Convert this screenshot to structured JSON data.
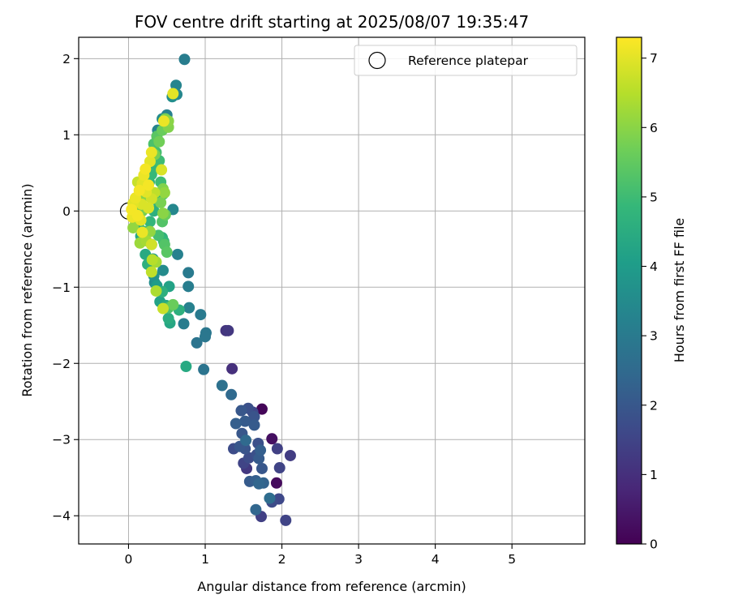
{
  "chart_data": {
    "type": "scatter",
    "title": "FOV centre drift starting at 2025/08/07 19:35:47",
    "xlabel": "Angular distance from reference (arcmin)",
    "ylabel": "Rotation from reference (arcmin)",
    "xlim": [
      -0.65,
      5.95
    ],
    "ylim": [
      -4.37,
      2.28
    ],
    "xticks": [
      0,
      1,
      2,
      3,
      4,
      5
    ],
    "xtick_labels": [
      "0",
      "1",
      "2",
      "3",
      "4",
      "5"
    ],
    "yticks": [
      -4,
      -3,
      -2,
      -1,
      0,
      1,
      2
    ],
    "ytick_labels": [
      "−4",
      "−3",
      "−2",
      "−1",
      "0",
      "1",
      "2"
    ],
    "grid": true,
    "legend": {
      "position": "upper right",
      "entries": [
        "Reference platepar"
      ]
    },
    "reference_point": {
      "label": "Reference platepar",
      "x": 0,
      "y": 0
    },
    "colorbar": {
      "label": "Hours from first FF file",
      "colormap": "viridis",
      "range": [
        0,
        7.3
      ],
      "ticks": [
        0,
        1,
        2,
        3,
        4,
        5,
        6,
        7
      ],
      "tick_labels": [
        "0",
        "1",
        "2",
        "3",
        "4",
        "5",
        "6",
        "7"
      ]
    },
    "colormap_stops": [
      "#440154",
      "#482878",
      "#3e4989",
      "#31688e",
      "#26828e",
      "#1f9e89",
      "#35b779",
      "#6ece58",
      "#b5de2b",
      "#fde725"
    ],
    "points": [
      {
        "x": 1.74,
        "y": -2.6,
        "h": 0.1
      },
      {
        "x": 1.87,
        "y": -2.99,
        "h": 0.3
      },
      {
        "x": 1.93,
        "y": -3.57,
        "h": 0.2
      },
      {
        "x": 1.35,
        "y": -2.07,
        "h": 1.0
      },
      {
        "x": 1.27,
        "y": -1.57,
        "h": 1.1
      },
      {
        "x": 1.3,
        "y": -1.57,
        "h": 1.2
      },
      {
        "x": 1.73,
        "y": -4.01,
        "h": 1.4
      },
      {
        "x": 2.05,
        "y": -4.06,
        "h": 1.5
      },
      {
        "x": 2.11,
        "y": -3.21,
        "h": 1.3
      },
      {
        "x": 1.97,
        "y": -3.37,
        "h": 1.5
      },
      {
        "x": 1.96,
        "y": -3.78,
        "h": 1.6
      },
      {
        "x": 1.87,
        "y": -3.82,
        "h": 1.7
      },
      {
        "x": 1.94,
        "y": -3.12,
        "h": 1.4
      },
      {
        "x": 1.62,
        "y": -2.64,
        "h": 1.6
      },
      {
        "x": 1.67,
        "y": -3.2,
        "h": 1.8
      },
      {
        "x": 1.54,
        "y": -3.38,
        "h": 1.2
      },
      {
        "x": 1.5,
        "y": -3.31,
        "h": 1.5
      },
      {
        "x": 1.57,
        "y": -3.24,
        "h": 1.7
      },
      {
        "x": 1.52,
        "y": -3.12,
        "h": 1.9
      },
      {
        "x": 1.45,
        "y": -3.09,
        "h": 2.0
      },
      {
        "x": 1.37,
        "y": -3.12,
        "h": 1.7
      },
      {
        "x": 1.48,
        "y": -2.92,
        "h": 2.0
      },
      {
        "x": 1.52,
        "y": -2.76,
        "h": 2.1
      },
      {
        "x": 1.4,
        "y": -2.79,
        "h": 2.2
      },
      {
        "x": 1.47,
        "y": -2.62,
        "h": 2.0
      },
      {
        "x": 1.56,
        "y": -2.59,
        "h": 1.8
      },
      {
        "x": 1.64,
        "y": -2.7,
        "h": 1.9
      },
      {
        "x": 1.64,
        "y": -2.81,
        "h": 2.1
      },
      {
        "x": 1.69,
        "y": -3.05,
        "h": 1.8
      },
      {
        "x": 1.72,
        "y": -3.14,
        "h": 2.2
      },
      {
        "x": 1.7,
        "y": -3.25,
        "h": 2.1
      },
      {
        "x": 1.74,
        "y": -3.38,
        "h": 2.0
      },
      {
        "x": 1.76,
        "y": -3.57,
        "h": 2.3
      },
      {
        "x": 1.7,
        "y": -3.58,
        "h": 2.4
      },
      {
        "x": 1.66,
        "y": -3.54,
        "h": 2.2
      },
      {
        "x": 1.58,
        "y": -3.55,
        "h": 2.1
      },
      {
        "x": 1.66,
        "y": -3.92,
        "h": 2.4
      },
      {
        "x": 1.84,
        "y": -3.77,
        "h": 2.6
      },
      {
        "x": 1.53,
        "y": -3.01,
        "h": 2.5
      },
      {
        "x": 1.34,
        "y": -2.41,
        "h": 2.5
      },
      {
        "x": 1.22,
        "y": -2.29,
        "h": 2.7
      },
      {
        "x": 0.98,
        "y": -2.08,
        "h": 2.8
      },
      {
        "x": 0.89,
        "y": -1.73,
        "h": 2.8
      },
      {
        "x": 1.01,
        "y": -1.6,
        "h": 2.9
      },
      {
        "x": 1.0,
        "y": -1.65,
        "h": 2.9
      },
      {
        "x": 0.94,
        "y": -1.36,
        "h": 3.0
      },
      {
        "x": 0.79,
        "y": -1.27,
        "h": 3.2
      },
      {
        "x": 0.78,
        "y": -0.99,
        "h": 3.1
      },
      {
        "x": 0.78,
        "y": -0.81,
        "h": 3.0
      },
      {
        "x": 0.64,
        "y": -0.57,
        "h": 3.2
      },
      {
        "x": 0.72,
        "y": -1.48,
        "h": 3.1
      },
      {
        "x": 0.73,
        "y": 1.99,
        "h": 3.1
      },
      {
        "x": 0.62,
        "y": 1.65,
        "h": 3.3
      },
      {
        "x": 0.57,
        "y": 1.5,
        "h": 3.6
      },
      {
        "x": 0.63,
        "y": 1.53,
        "h": 3.4
      },
      {
        "x": 0.5,
        "y": 1.26,
        "h": 3.2
      },
      {
        "x": 0.44,
        "y": 1.21,
        "h": 3.5
      },
      {
        "x": 0.38,
        "y": 1.06,
        "h": 3.3
      },
      {
        "x": 0.58,
        "y": 0.02,
        "h": 3.4
      },
      {
        "x": 0.45,
        "y": -0.78,
        "h": 3.5
      },
      {
        "x": 0.33,
        "y": -0.85,
        "h": 3.7
      },
      {
        "x": 0.32,
        "y": -0.63,
        "h": 3.9
      },
      {
        "x": 0.34,
        "y": -0.94,
        "h": 3.6
      },
      {
        "x": 0.75,
        "y": -2.04,
        "h": 4.4
      },
      {
        "x": 0.54,
        "y": -1.47,
        "h": 4.3
      },
      {
        "x": 0.52,
        "y": -1.41,
        "h": 4.5
      },
      {
        "x": 0.49,
        "y": -1.24,
        "h": 4.4
      },
      {
        "x": 0.53,
        "y": -0.99,
        "h": 4.2
      },
      {
        "x": 0.44,
        "y": -1.06,
        "h": 4.6
      },
      {
        "x": 0.41,
        "y": -1.19,
        "h": 4.2
      },
      {
        "x": 0.37,
        "y": -0.98,
        "h": 4.0
      },
      {
        "x": 0.66,
        "y": -1.3,
        "h": 4.6
      },
      {
        "x": 0.46,
        "y": -0.4,
        "h": 4.8
      },
      {
        "x": 0.44,
        "y": -0.35,
        "h": 4.7
      },
      {
        "x": 0.3,
        "y": -0.44,
        "h": 4.5
      },
      {
        "x": 0.22,
        "y": -0.57,
        "h": 4.4
      },
      {
        "x": 0.25,
        "y": -0.7,
        "h": 4.6
      },
      {
        "x": 0.16,
        "y": -0.33,
        "h": 4.3
      },
      {
        "x": 0.13,
        "y": -0.19,
        "h": 4.8
      },
      {
        "x": 0.1,
        "y": -0.04,
        "h": 4.9
      },
      {
        "x": 0.12,
        "y": 0.05,
        "h": 5.0
      },
      {
        "x": 0.16,
        "y": 0.17,
        "h": 4.8
      },
      {
        "x": 0.22,
        "y": 0.28,
        "h": 4.6
      },
      {
        "x": 0.27,
        "y": 0.38,
        "h": 4.7
      },
      {
        "x": 0.3,
        "y": 0.48,
        "h": 4.9
      },
      {
        "x": 0.35,
        "y": 0.59,
        "h": 4.8
      },
      {
        "x": 0.42,
        "y": 0.38,
        "h": 5.0
      },
      {
        "x": 0.45,
        "y": 0.22,
        "h": 4.9
      },
      {
        "x": 0.38,
        "y": 0.13,
        "h": 4.7
      },
      {
        "x": 0.33,
        "y": 0.0,
        "h": 4.6
      },
      {
        "x": 0.28,
        "y": -0.14,
        "h": 4.8
      },
      {
        "x": 0.22,
        "y": -0.27,
        "h": 5.0
      },
      {
        "x": 0.4,
        "y": 0.66,
        "h": 5.0
      },
      {
        "x": 0.36,
        "y": 0.77,
        "h": 5.1
      },
      {
        "x": 0.33,
        "y": 0.88,
        "h": 5.2
      },
      {
        "x": 0.37,
        "y": 0.98,
        "h": 5.4
      },
      {
        "x": 0.44,
        "y": 1.06,
        "h": 5.6
      },
      {
        "x": 0.49,
        "y": 1.13,
        "h": 5.5
      },
      {
        "x": 0.52,
        "y": 1.1,
        "h": 5.9
      },
      {
        "x": 0.52,
        "y": 1.18,
        "h": 6.0
      },
      {
        "x": 0.48,
        "y": 1.21,
        "h": 5.8
      },
      {
        "x": 0.4,
        "y": 0.91,
        "h": 5.7
      },
      {
        "x": 0.34,
        "y": 0.74,
        "h": 5.8
      },
      {
        "x": 0.47,
        "y": -0.44,
        "h": 5.3
      },
      {
        "x": 0.39,
        "y": -0.32,
        "h": 5.1
      },
      {
        "x": 0.5,
        "y": -0.54,
        "h": 5.4
      },
      {
        "x": 0.52,
        "y": -1.27,
        "h": 5.2
      },
      {
        "x": 0.58,
        "y": -1.23,
        "h": 5.6
      },
      {
        "x": 0.44,
        "y": -0.14,
        "h": 5.3
      },
      {
        "x": 0.48,
        "y": -0.05,
        "h": 5.6
      },
      {
        "x": 0.45,
        "y": -0.03,
        "h": 6.0
      },
      {
        "x": 0.42,
        "y": 0.11,
        "h": 5.8
      },
      {
        "x": 0.45,
        "y": 0.29,
        "h": 5.9
      },
      {
        "x": 0.47,
        "y": 0.24,
        "h": 6.1
      },
      {
        "x": 0.22,
        "y": 0.2,
        "h": 6.0
      },
      {
        "x": 0.18,
        "y": 0.0,
        "h": 5.8
      },
      {
        "x": 0.08,
        "y": -0.11,
        "h": 5.9
      },
      {
        "x": 0.06,
        "y": -0.22,
        "h": 6.1
      },
      {
        "x": 0.15,
        "y": -0.42,
        "h": 6.2
      },
      {
        "x": 0.23,
        "y": -0.39,
        "h": 6.3
      },
      {
        "x": 0.28,
        "y": -0.27,
        "h": 6.1
      },
      {
        "x": 0.31,
        "y": -0.64,
        "h": 6.5
      },
      {
        "x": 0.36,
        "y": -0.67,
        "h": 6.3
      },
      {
        "x": 0.3,
        "y": -0.8,
        "h": 6.6
      },
      {
        "x": 0.36,
        "y": -1.05,
        "h": 6.4
      },
      {
        "x": 0.45,
        "y": -1.28,
        "h": 6.7
      },
      {
        "x": 0.43,
        "y": 0.54,
        "h": 6.9
      },
      {
        "x": 0.58,
        "y": 1.54,
        "h": 7.0
      },
      {
        "x": 0.46,
        "y": 1.18,
        "h": 7.1
      },
      {
        "x": 0.3,
        "y": 0.77,
        "h": 7.1
      },
      {
        "x": 0.28,
        "y": 0.65,
        "h": 7.0
      },
      {
        "x": 0.22,
        "y": 0.55,
        "h": 7.2
      },
      {
        "x": 0.2,
        "y": 0.47,
        "h": 7.1
      },
      {
        "x": 0.18,
        "y": 0.36,
        "h": 7.0
      },
      {
        "x": 0.14,
        "y": 0.27,
        "h": 7.2
      },
      {
        "x": 0.09,
        "y": 0.17,
        "h": 7.1
      },
      {
        "x": 0.06,
        "y": 0.1,
        "h": 7.0
      },
      {
        "x": 0.04,
        "y": 0.02,
        "h": 7.2
      },
      {
        "x": 0.05,
        "y": -0.08,
        "h": 7.1
      },
      {
        "x": 0.12,
        "y": -0.06,
        "h": 7.2
      },
      {
        "x": 0.16,
        "y": -0.12,
        "h": 7.0
      },
      {
        "x": 0.18,
        "y": -0.28,
        "h": 7.1
      },
      {
        "x": 0.26,
        "y": 0.34,
        "h": 7.2
      },
      {
        "x": 0.23,
        "y": 0.25,
        "h": 7.0
      },
      {
        "x": 0.3,
        "y": 0.16,
        "h": 6.8
      },
      {
        "x": 0.17,
        "y": 0.09,
        "h": 6.9
      },
      {
        "x": 0.3,
        "y": -0.44,
        "h": 6.8
      },
      {
        "x": 0.12,
        "y": 0.38,
        "h": 6.7
      },
      {
        "x": 0.34,
        "y": 0.24,
        "h": 6.6
      },
      {
        "x": 0.26,
        "y": 0.04,
        "h": 6.9
      }
    ]
  }
}
